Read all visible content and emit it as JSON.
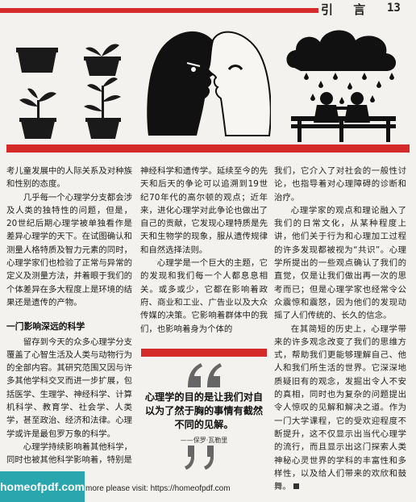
{
  "header": {
    "title": "引 言",
    "page_number": "13"
  },
  "columns": {
    "c1": {
      "p1": "考儿童发展中的人际关系及对种族和性别的态度。",
      "p2": "几乎每一个心理学分支都会涉及人类的独特性的问题，但是，20世纪后期心理学被单独看作是差异心理学的天下。在试图确认和测量人格特质及智力元素的同时，心理学家们也检验了正常与异常的定义及测量方法，并着眼于我们的个体差异在多大程度上是环境的结果还是遗传的产物。",
      "section_title": "一门影响深远的科学",
      "p3": "留存到今天的众多心理学分支覆盖了心智生活及人类与动物行为的全部内容。其研究范围又因与许多其他学科交叉而进一步扩展，包括医学、生理学、神经科学、计算机科学、教育学、社会学、人类学，甚至政治、经济和法律。心理学或许是最包罗万象的科学。",
      "p4": "心理学持续影响着其他科学，同时也被其他科学影响着，特别是"
    },
    "c2": {
      "p1": "神经科学和遗传学。延续至今的先天和后天的争论可以追溯到19世纪70年代的高尔顿的观点；近年来，进化心理学对此争论也做出了自己的贡献，它发现心理特质是先天和生物学的现象，服从遗传规律和自然选择法则。",
      "p2": "心理学是一个巨大的主题，它的发现和我们每一个人都息息相关。或多或少，它都在影响着政府、商业和工业、广告业以及大众传媒的决策。它影响着群体中的我们，也影响着身为个体的"
    },
    "c3": {
      "p1": "我们，它介入了对社会的一般性讨论，也指导着对心理障碍的诊断和治疗。",
      "p2": "心理学家的观点和理论融入了我们的日常文化，从某种程度上讲，他们关于行为和心理加工过程的许多发现都被视为“共识”。心理学所提出的一些观点确认了我们的直觉，仅是让我们做出再一次的思考而已；但是心理学家也经常令公众震惊和震怒，因为他们的发现动摇了人们传统的、长久的信念。",
      "p3": "在其简短的历史上，心理学带来的许多观念改变了我们的思维方式，帮助我们更能够理解自己、他人和我们所生活的世界。它深深地质疑旧有的观念，发掘出令人不安的真相，同时也为复杂的问题提出令人惊叹的见解和解决之道。作为一门大学课程，它的受欢迎程度不断提升，这不仅显示出当代心理学的流行，而且显示出这门探索人类神秘心灵世界的学科的丰富性和多样性，以及给人们带来的欢欣和鼓舞。"
    }
  },
  "quote": {
    "text": "心理学的目的是让我们对自以为了然于胸的事情有截然不同的见解。",
    "author": "——保罗·瓦勒里"
  },
  "footer": {
    "logo": "homeofpdf.com",
    "text": "more please visit: https://homeofpdf.com"
  },
  "colors": {
    "accent": "#d42a2a",
    "logo_bg": "#2aa6ae"
  }
}
